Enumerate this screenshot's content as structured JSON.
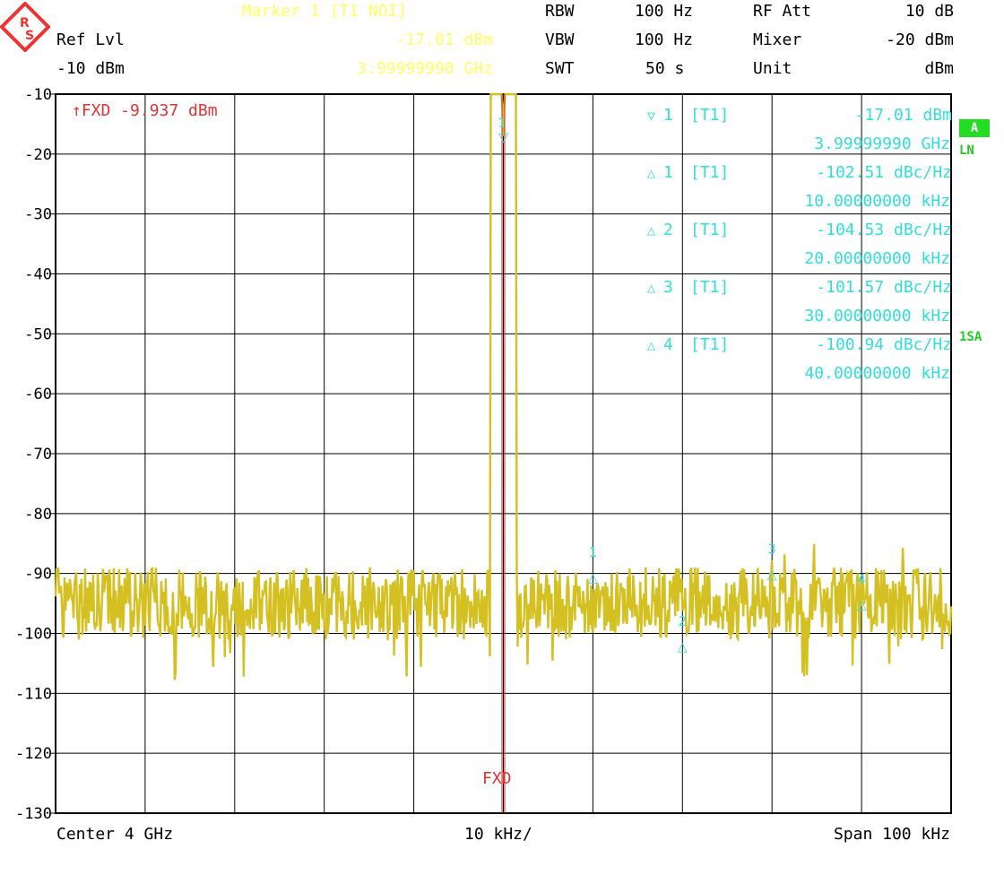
{
  "header": {
    "marker_title": "Marker 1 [T1 NOI]",
    "marker_level": "-17.01 dBm",
    "marker_freq": "3.99999990 GHz",
    "ref_label": "Ref Lvl",
    "ref_value": "-10 dBm",
    "rbw_label": "RBW",
    "rbw_value": "100 Hz",
    "vbw_label": "VBW",
    "vbw_value": "100 Hz",
    "swt_label": "SWT",
    "swt_value": "50 s",
    "rfatt_label": "RF Att",
    "rfatt_value": "10 dB",
    "mixer_label": "Mixer",
    "mixer_value": "-20 dBm",
    "unit_label": "Unit",
    "unit_value": "dBm"
  },
  "fxd_line": {
    "label": "↑FXD -9.937 dBm",
    "bottom_label": "FXD"
  },
  "marker_table": [
    {
      "symbol": "▽",
      "num": "1",
      "trace": "[T1]",
      "value": "-17.01 dBm",
      "freq": "3.99999990 GHz"
    },
    {
      "symbol": "△",
      "num": "1",
      "trace": "[T1]",
      "value": "-102.51 dBc/Hz",
      "freq": "10.00000000 kHz"
    },
    {
      "symbol": "△",
      "num": "2",
      "trace": "[T1]",
      "value": "-104.53 dBc/Hz",
      "freq": "20.00000000 kHz"
    },
    {
      "symbol": "△",
      "num": "3",
      "trace": "[T1]",
      "value": "-101.57 dBc/Hz",
      "freq": "30.00000000 kHz"
    },
    {
      "symbol": "△",
      "num": "4",
      "trace": "[T1]",
      "value": "-100.94 dBc/Hz",
      "freq": "40.00000000 kHz"
    }
  ],
  "side_labels": {
    "a": "A",
    "ln": "LN",
    "sa": "1SA"
  },
  "footer": {
    "center": "Center 4 GHz",
    "div": "10 kHz/",
    "span": "Span 100 kHz"
  },
  "colors": {
    "trace": "#d4c020",
    "grid": "#000000",
    "marker": "#33dddd",
    "fxd": "#cc2222",
    "accent": "#22dd22"
  },
  "chart_data": {
    "type": "line",
    "xlabel": "",
    "ylabel": "",
    "x_unit": "kHz offset from center",
    "xlim": [
      -50,
      50
    ],
    "ylim": [
      -130,
      -10
    ],
    "yticks": [
      -10,
      -20,
      -30,
      -40,
      -50,
      -60,
      -70,
      -80,
      -90,
      -100,
      -110,
      -120,
      -130
    ],
    "grid": true,
    "fxd_level": -9.937,
    "carrier": {
      "x": 0,
      "y": -17.01
    },
    "noise_floor_approx": -95,
    "delta_markers": [
      {
        "label": "1",
        "x": 10,
        "y": -90.5
      },
      {
        "label": "2",
        "x": 20,
        "y": -102
      },
      {
        "label": "3",
        "x": 30,
        "y": -90
      },
      {
        "label": "4",
        "x": 40,
        "y": -95
      }
    ]
  }
}
